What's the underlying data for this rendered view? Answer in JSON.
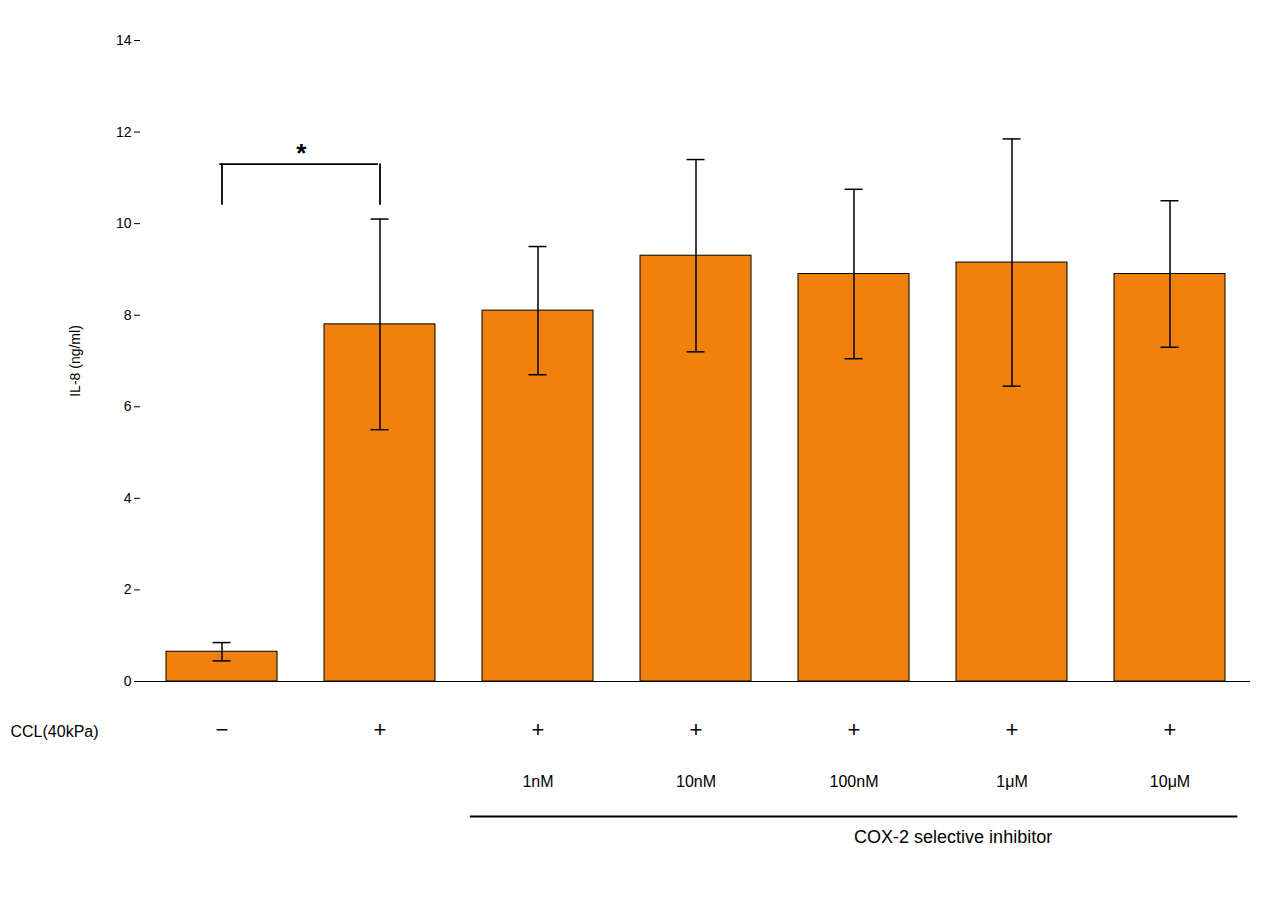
{
  "chart_data": {
    "type": "bar",
    "categories": [
      null,
      null,
      "1nM",
      "10nM",
      "100nM",
      "1μM",
      "10μM"
    ],
    "values": [
      0.65,
      7.8,
      8.1,
      9.3,
      8.9,
      9.15,
      8.9
    ],
    "errors": [
      0.2,
      2.3,
      1.4,
      2.1,
      1.85,
      2.7,
      1.6
    ],
    "color": "#F0810F",
    "ylabel": "IL-8 (ng/ml)",
    "ylim": [
      0,
      14
    ],
    "yticks": [
      0,
      2,
      4,
      6,
      8,
      10,
      12,
      14
    ],
    "grid": false,
    "conditions": [
      {
        "label": "CCL(40kPa)",
        "values": [
          "−",
          "+",
          "+",
          "+",
          "+",
          "+",
          "+"
        ]
      }
    ],
    "group": {
      "label": "COX-2 selective inhibitor",
      "from": "1nM",
      "to": "10μM"
    },
    "significance": [
      {
        "text": "*",
        "between": [
          0,
          1
        ],
        "y_bottom": 10.4,
        "y_top": 11.3
      }
    ]
  }
}
